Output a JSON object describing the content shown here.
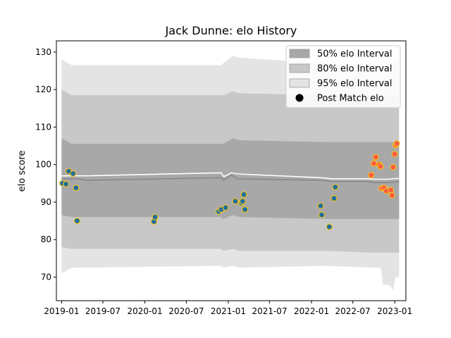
{
  "chart_data": {
    "type": "scatter",
    "title": "Jack Dunne: elo History",
    "xlabel": "",
    "ylabel": "elo score",
    "xlim": [
      "2018-12-09",
      "2023-02-19"
    ],
    "ylim": [
      63.7,
      133.0
    ],
    "x_ticks": [
      "2019-01",
      "2019-07",
      "2020-01",
      "2020-07",
      "2021-01",
      "2021-07",
      "2022-01",
      "2022-07",
      "2023-01"
    ],
    "y_ticks": [
      70,
      80,
      90,
      100,
      110,
      120,
      130
    ],
    "legend": {
      "placement": "top-right",
      "entries": [
        "50% elo Interval",
        "80% elo Interval",
        "95% elo Interval",
        "Post Match elo"
      ]
    },
    "colors": {
      "band50": "#a8a8a8",
      "band80": "#c8c8c8",
      "band95": "#e4e4e4",
      "center_line": "#ffffff",
      "median_line": "#888888",
      "point_fill_early": "#1f6fa0",
      "point_fill_recent": "#ff5a45",
      "point_edge": "#f2c21a"
    },
    "bands": {
      "dates": [
        "2019-01-01",
        "2019-02-15",
        "2019-04-15",
        "2020-12-01",
        "2020-12-10",
        "2021-01-20",
        "2021-02-20",
        "2022-03-01",
        "2022-10-01",
        "2022-11-01",
        "2022-11-10",
        "2022-11-25",
        "2022-12-15",
        "2022-12-25",
        "2023-01-05",
        "2023-01-20"
      ],
      "p95_low": [
        71,
        72.5,
        72.5,
        73,
        72.5,
        73,
        72.5,
        73,
        72.5,
        72.5,
        68,
        68,
        67.5,
        66.5,
        70,
        70
      ],
      "p95_high": [
        128,
        126.5,
        126.5,
        126.5,
        127,
        129,
        128.5,
        127,
        126.5,
        126.5,
        126,
        126.5,
        127,
        126.5,
        128,
        128
      ],
      "p80_low": [
        78,
        77.5,
        77.5,
        77.5,
        77,
        77.5,
        77,
        77,
        76.5,
        76.5,
        76.5,
        76.5,
        76.5,
        76.5,
        76.5,
        76.5
      ],
      "p80_high": [
        120,
        118.5,
        118.5,
        118.5,
        118.5,
        119.5,
        119,
        118.5,
        118.5,
        118.5,
        118.5,
        118.5,
        118.5,
        118.5,
        118.5,
        118.5
      ],
      "p50_low": [
        86.5,
        86,
        86,
        86,
        85.5,
        86.5,
        86,
        85.5,
        85.5,
        85.5,
        85.5,
        85.5,
        85.5,
        85.5,
        85.5,
        85.5
      ],
      "p50_high": [
        107,
        105.5,
        105.5,
        105.5,
        105.5,
        107,
        106.5,
        106,
        106,
        106,
        106,
        106,
        106,
        106,
        106,
        106
      ]
    },
    "center_line": {
      "dates": [
        "2019-01-01",
        "2019-03-15",
        "2019-04-15",
        "2020-12-01",
        "2020-12-12",
        "2021-01-15",
        "2021-02-10",
        "2022-02-15",
        "2022-04-01",
        "2022-09-01",
        "2022-10-01",
        "2022-12-01",
        "2023-01-10",
        "2023-01-20"
      ],
      "values": [
        97,
        97,
        97,
        97.8,
        96.8,
        97.8,
        97.5,
        96.5,
        96.2,
        96.2,
        96.1,
        96.1,
        96.3,
        96.3
      ]
    },
    "median_line": {
      "dates": [
        "2019-01-01",
        "2019-03-15",
        "2019-04-15",
        "2020-12-01",
        "2020-12-12",
        "2021-01-15",
        "2021-02-10",
        "2022-02-15",
        "2022-04-01",
        "2022-09-01",
        "2022-10-01",
        "2022-12-01",
        "2023-01-10",
        "2023-01-20"
      ],
      "values": [
        96.2,
        96.2,
        95.8,
        96.5,
        95.8,
        97.2,
        96.2,
        95.8,
        95.5,
        95.5,
        95.2,
        95.2,
        95.4,
        95.4
      ]
    },
    "series": [
      {
        "name": "Post Match elo",
        "points": [
          {
            "date": "2019-01-05",
            "value": 95.0,
            "group": "early"
          },
          {
            "date": "2019-01-20",
            "value": 94.8,
            "group": "early"
          },
          {
            "date": "2019-02-01",
            "value": 98.2,
            "group": "early"
          },
          {
            "date": "2019-02-20",
            "value": 97.6,
            "group": "early"
          },
          {
            "date": "2019-03-05",
            "value": 93.8,
            "group": "early"
          },
          {
            "date": "2019-03-10",
            "value": 85.0,
            "group": "early"
          },
          {
            "date": "2020-02-10",
            "value": 84.8,
            "group": "early"
          },
          {
            "date": "2020-02-15",
            "value": 86.0,
            "group": "early"
          },
          {
            "date": "2020-11-20",
            "value": 87.5,
            "group": "early"
          },
          {
            "date": "2020-12-01",
            "value": 88.0,
            "group": "early"
          },
          {
            "date": "2020-12-20",
            "value": 88.5,
            "group": "early"
          },
          {
            "date": "2021-02-01",
            "value": 90.2,
            "group": "early"
          },
          {
            "date": "2021-02-28",
            "value": 89.8,
            "group": "early"
          },
          {
            "date": "2021-03-05",
            "value": 90.2,
            "group": "early"
          },
          {
            "date": "2021-03-10",
            "value": 92.0,
            "group": "early"
          },
          {
            "date": "2021-03-15",
            "value": 88.0,
            "group": "early"
          },
          {
            "date": "2022-02-10",
            "value": 89.0,
            "group": "early"
          },
          {
            "date": "2022-02-15",
            "value": 86.6,
            "group": "early"
          },
          {
            "date": "2022-03-20",
            "value": 83.4,
            "group": "early"
          },
          {
            "date": "2022-04-10",
            "value": 91.0,
            "group": "early"
          },
          {
            "date": "2022-04-15",
            "value": 94.0,
            "group": "early"
          },
          {
            "date": "2022-09-20",
            "value": 97.2,
            "group": "recent"
          },
          {
            "date": "2022-10-01",
            "value": 100.3,
            "group": "recent"
          },
          {
            "date": "2022-10-10",
            "value": 102.0,
            "group": "recent"
          },
          {
            "date": "2022-10-25",
            "value": 100.0,
            "group": "recent"
          },
          {
            "date": "2022-10-31",
            "value": 99.5,
            "group": "recent"
          },
          {
            "date": "2022-11-05",
            "value": 93.7,
            "group": "recent"
          },
          {
            "date": "2022-11-15",
            "value": 93.8,
            "group": "recent"
          },
          {
            "date": "2022-11-25",
            "value": 93.0,
            "group": "recent"
          },
          {
            "date": "2022-12-15",
            "value": 93.2,
            "group": "recent"
          },
          {
            "date": "2022-12-20",
            "value": 91.8,
            "group": "recent"
          },
          {
            "date": "2022-12-25",
            "value": 99.3,
            "group": "recent"
          },
          {
            "date": "2023-01-01",
            "value": 102.8,
            "group": "recent"
          },
          {
            "date": "2023-01-05",
            "value": 105.2,
            "group": "recent"
          },
          {
            "date": "2023-01-10",
            "value": 105.6,
            "group": "recent"
          }
        ]
      }
    ]
  }
}
